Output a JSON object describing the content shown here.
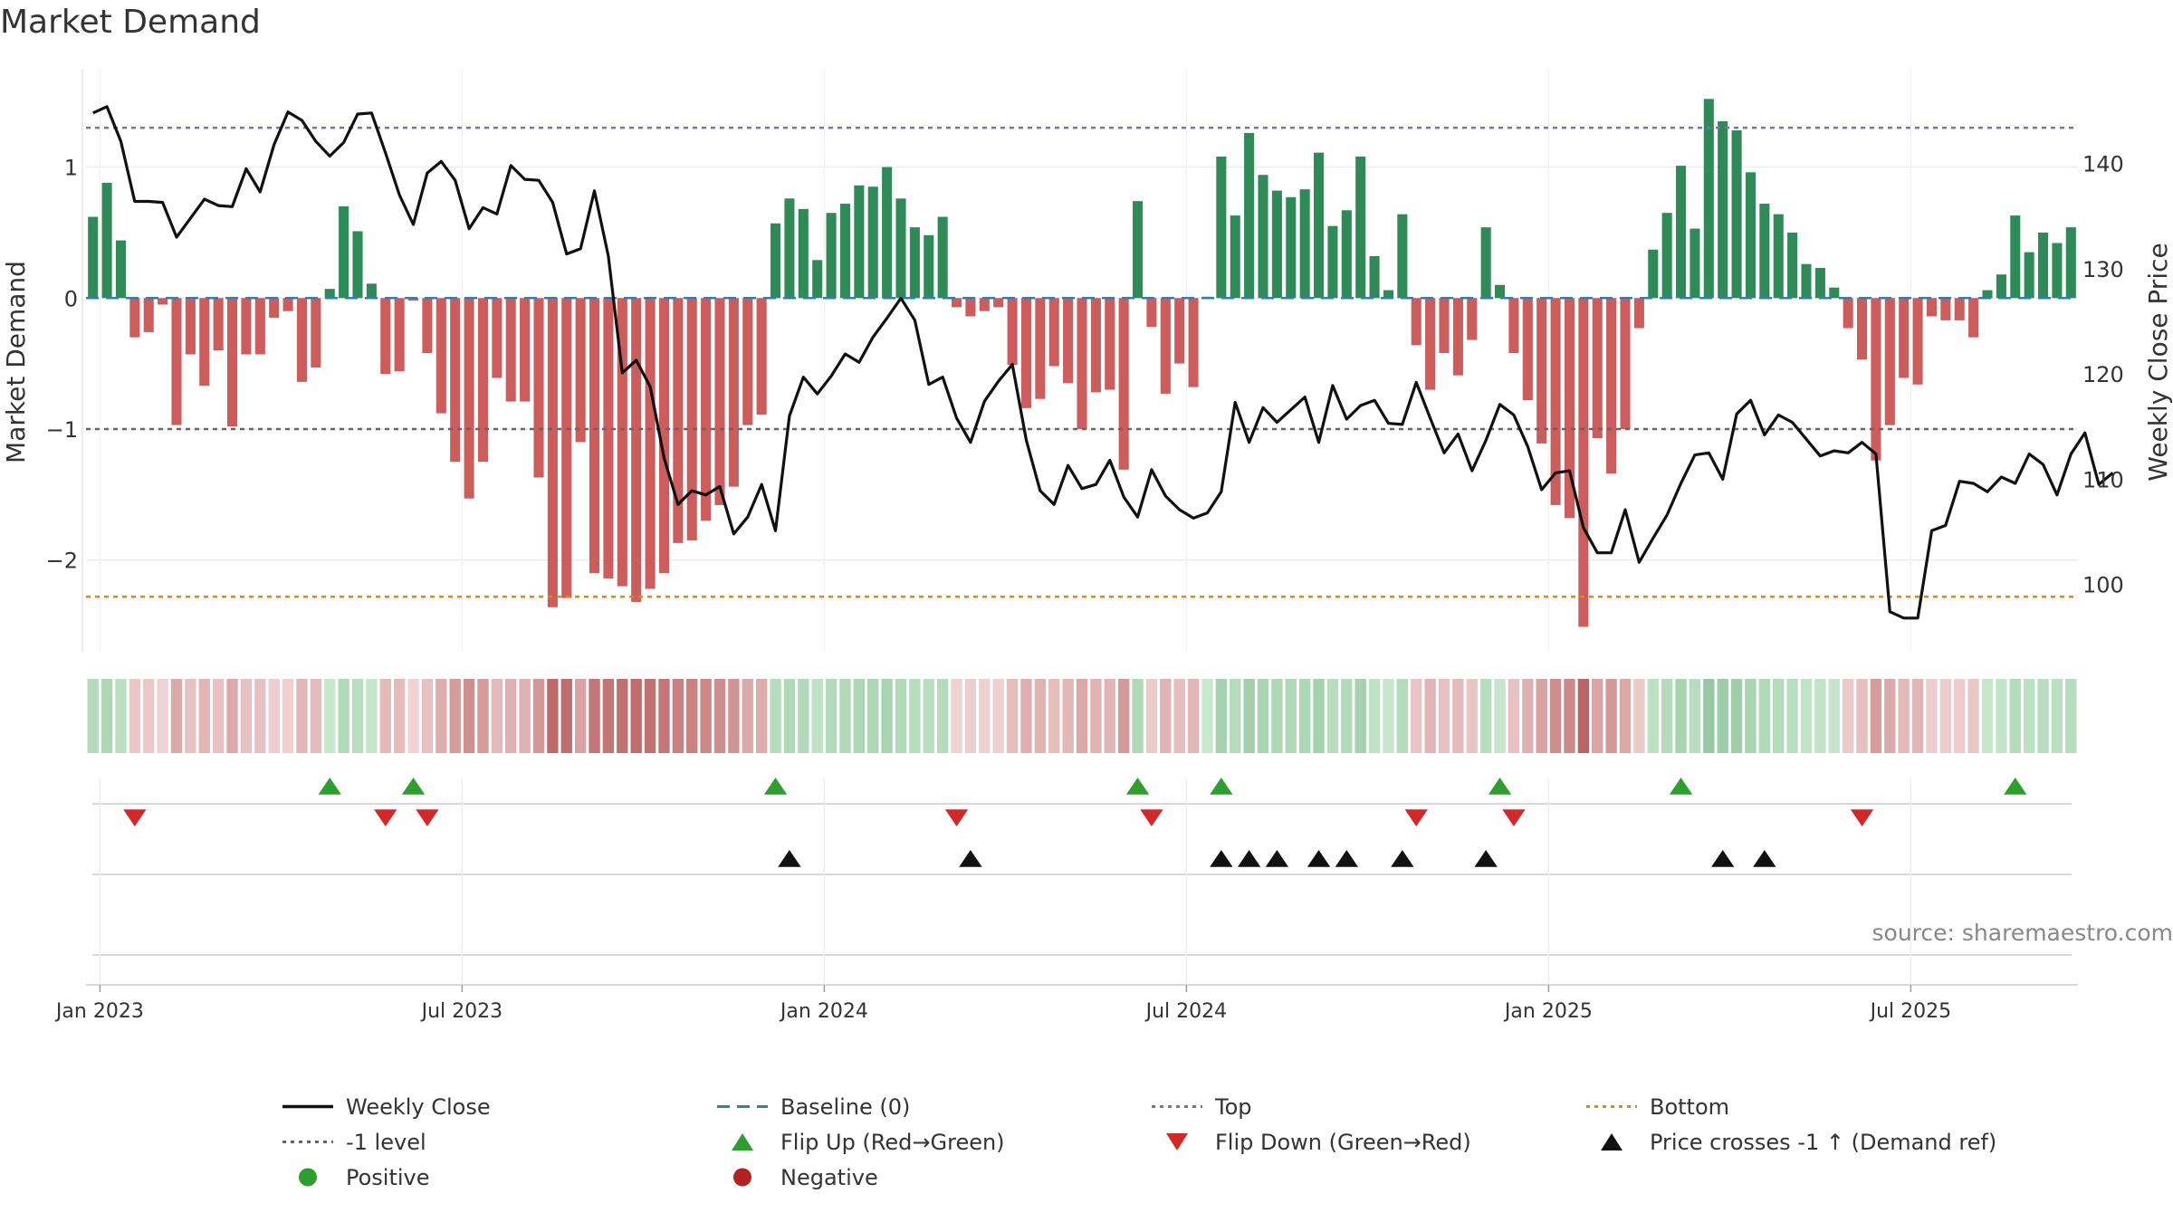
{
  "title": "Market Demand",
  "source": "source: sharemaestro.com",
  "colors": {
    "positive": "#2e8b57",
    "negative": "#cd5c5c",
    "price": "#111111",
    "top": "#7b6fb0",
    "bottom": "#d98a1a",
    "level": "#666666",
    "baseline": "#2f7fb5",
    "flip_up": "#2ca02c",
    "flip_down": "#d62728",
    "cross": "#111111",
    "legend_positive": "#2ca02c",
    "legend_negative": "#b22222"
  },
  "chart_data": {
    "type": "bar+line",
    "title": "Market Demand",
    "ylabel": "Market Demand",
    "y2label": "Weekly Close Price",
    "ylim": [
      -2.7,
      1.75
    ],
    "y2lim": [
      93.6,
      149.0
    ],
    "yticks": [
      -2,
      -1,
      0,
      1
    ],
    "yticklabels": [
      "−2",
      "−1",
      "0",
      "1"
    ],
    "y2ticks": [
      100,
      110,
      120,
      130,
      140
    ],
    "x_dates": {
      "start": "2022-12-26",
      "step_days": 7,
      "count": 141
    },
    "xticks": [
      {
        "label": "Jan 2023",
        "week": 1
      },
      {
        "label": "Jul 2023",
        "week": 27
      },
      {
        "label": "Jan 2024",
        "week": 53
      },
      {
        "label": "Jul 2024",
        "week": 79
      },
      {
        "label": "Jan 2025",
        "week": 105
      },
      {
        "label": "Jul 2025",
        "week": 131
      }
    ],
    "reference_lines": {
      "top": 1.3,
      "level": -1.0,
      "bottom": -2.28,
      "baseline": 0
    },
    "demand": [
      0.62,
      0.88,
      0.44,
      -0.3,
      -0.26,
      -0.05,
      -0.97,
      -0.43,
      -0.67,
      -0.4,
      -0.98,
      -0.43,
      -0.43,
      -0.15,
      -0.1,
      -0.64,
      -0.53,
      0.07,
      0.7,
      0.51,
      0.11,
      -0.58,
      -0.56,
      -0.02,
      -0.42,
      -0.88,
      -1.25,
      -1.53,
      -1.25,
      -0.61,
      -0.79,
      -0.79,
      -1.37,
      -2.36,
      -2.29,
      -1.1,
      -2.1,
      -2.14,
      -2.2,
      -2.32,
      -2.22,
      -2.1,
      -1.87,
      -1.85,
      -1.7,
      -1.58,
      -1.44,
      -0.97,
      -0.89,
      0.57,
      0.76,
      0.68,
      0.29,
      0.65,
      0.72,
      0.86,
      0.85,
      1.0,
      0.76,
      0.54,
      0.48,
      0.62,
      -0.07,
      -0.14,
      -0.1,
      -0.07,
      -0.51,
      -0.84,
      -0.77,
      -0.52,
      -0.65,
      -1.0,
      -0.72,
      -0.7,
      -1.31,
      0.74,
      -0.22,
      -0.73,
      -0.5,
      -0.68,
      0.01,
      1.08,
      0.63,
      1.26,
      0.94,
      0.82,
      0.77,
      0.83,
      1.11,
      0.55,
      0.67,
      1.08,
      0.32,
      0.06,
      0.64,
      -0.36,
      -0.7,
      -0.42,
      -0.59,
      -0.32,
      0.54,
      0.1,
      -0.42,
      -0.78,
      -1.11,
      -1.58,
      -1.68,
      -2.51,
      -1.07,
      -1.34,
      -1.0,
      -0.23,
      0.37,
      0.65,
      1.01,
      0.53,
      1.52,
      1.35,
      1.28,
      0.96,
      0.72,
      0.64,
      0.5,
      0.26,
      0.23,
      0.08,
      -0.23,
      -0.47,
      -1.24,
      -0.97,
      -0.61,
      -0.66,
      -0.14,
      -0.17,
      -0.17,
      -0.3,
      0.06,
      0.18,
      0.63,
      0.35,
      0.5,
      0.42,
      0.54
    ],
    "weekly_close": [
      144.8,
      145.4,
      142.1,
      136.4,
      136.4,
      136.3,
      133.0,
      134.8,
      136.6,
      136.0,
      135.9,
      139.5,
      137.3,
      141.8,
      144.9,
      144.1,
      142.1,
      140.7,
      142.0,
      144.7,
      144.8,
      141.0,
      137.0,
      134.2,
      139.1,
      140.2,
      138.4,
      133.8,
      135.8,
      135.2,
      139.8,
      138.5,
      138.4,
      136.3,
      131.4,
      131.9,
      137.4,
      131.2,
      120.1,
      121.3,
      118.8,
      112.0,
      107.6,
      108.9,
      108.5,
      109.3,
      104.8,
      106.4,
      109.5,
      105.1,
      116.0,
      119.7,
      118.1,
      119.8,
      121.9,
      121.1,
      123.5,
      125.3,
      127.2,
      125.1,
      119.0,
      119.7,
      115.8,
      113.5,
      117.4,
      119.3,
      120.9,
      113.7,
      108.9,
      107.6,
      111.3,
      109.1,
      109.5,
      111.8,
      108.3,
      106.4,
      110.9,
      108.4,
      107.1,
      106.3,
      106.8,
      108.8,
      117.3,
      113.5,
      116.8,
      115.4,
      116.6,
      117.8,
      113.5,
      118.9,
      115.7,
      117.0,
      117.5,
      115.3,
      115.2,
      119.2,
      115.8,
      112.5,
      114.3,
      110.8,
      113.7,
      117.1,
      116.1,
      113.1,
      109.0,
      110.6,
      110.8,
      105.4,
      103.0,
      103.0,
      107.1,
      102.1,
      104.4,
      106.6,
      109.6,
      112.3,
      112.5,
      110.0,
      116.2,
      117.5,
      114.2,
      116.1,
      115.4,
      113.8,
      112.2,
      112.7,
      112.5,
      113.5,
      112.4,
      97.4,
      96.8,
      96.8,
      105.1,
      105.6,
      109.8,
      109.6,
      108.8,
      110.2,
      109.6,
      112.4,
      111.4,
      108.5,
      112.4,
      114.4,
      109.5,
      110.6
    ]
  },
  "strip_data": {
    "flip_up_weeks": [
      17,
      23,
      49,
      75,
      81,
      101,
      114,
      138
    ],
    "flip_down_weeks": [
      3,
      21,
      24,
      62,
      76,
      95,
      102,
      127
    ],
    "cross_weeks": [
      50,
      63,
      81,
      83,
      85,
      88,
      90,
      94,
      100,
      117,
      120
    ]
  },
  "legend": [
    {
      "label": "Weekly Close",
      "symbol": "line-solid",
      "color": "#111111"
    },
    {
      "label": "Baseline (0)",
      "symbol": "line-dashed",
      "color": "#2f7fb5"
    },
    {
      "label": "Top",
      "symbol": "line-dotted",
      "color": "#7b6fb0"
    },
    {
      "label": "Bottom",
      "symbol": "line-dotted",
      "color": "#d98a1a"
    },
    {
      "label": "-1 level",
      "symbol": "line-dotted",
      "color": "#666666"
    },
    {
      "label": "Flip Up (Red→Green)",
      "symbol": "triangle-up",
      "color": "#2ca02c"
    },
    {
      "label": "Flip Down (Green→Red)",
      "symbol": "triangle-down",
      "color": "#d62728"
    },
    {
      "label": "Price crosses -1 ↑ (Demand ref)",
      "symbol": "triangle-up",
      "color": "#111111"
    },
    {
      "label": "Positive",
      "symbol": "circle",
      "color": "#2ca02c"
    },
    {
      "label": "Negative",
      "symbol": "circle",
      "color": "#b22222"
    }
  ]
}
